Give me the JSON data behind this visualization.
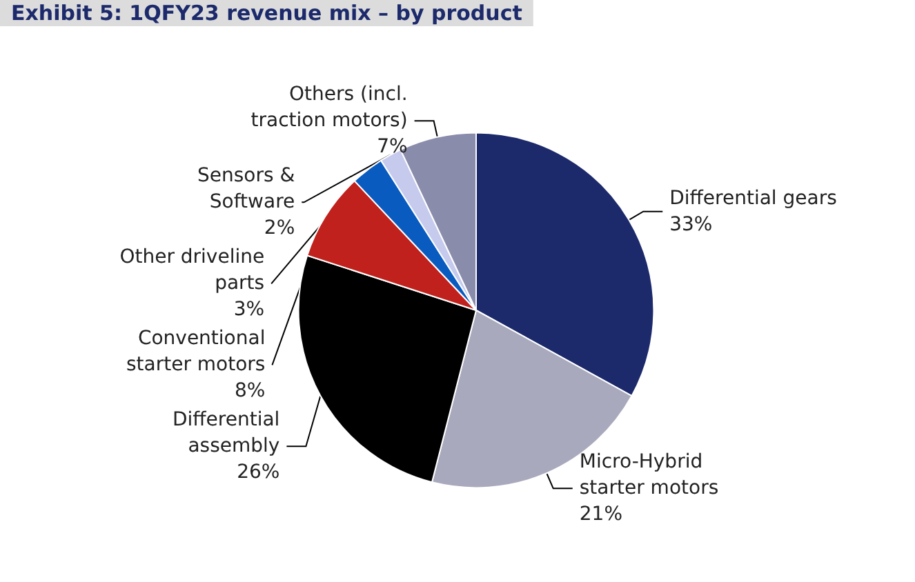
{
  "chart_data": {
    "type": "pie",
    "title": "Exhibit 5: 1QFY23 revenue mix – by product",
    "categories": [
      "Differential gears",
      "Micro-Hybrid\nstarter motors",
      "Differential\nassembly",
      "Conventional\nstarter motors",
      "Other driveline\nparts",
      "Sensors &\nSoftware",
      "Others (incl.\ntraction motors)"
    ],
    "values": [
      33,
      21,
      26,
      8,
      3,
      2,
      7
    ],
    "value_labels": [
      "33%",
      "21%",
      "26%",
      "8%",
      "3%",
      "2%",
      "7%"
    ],
    "colors": [
      "#1c2a6b",
      "#a9a9bd",
      "#000000",
      "#c0211c",
      "#0a5bbf",
      "#c6cbee",
      "#8a8cab"
    ],
    "legend": false
  }
}
